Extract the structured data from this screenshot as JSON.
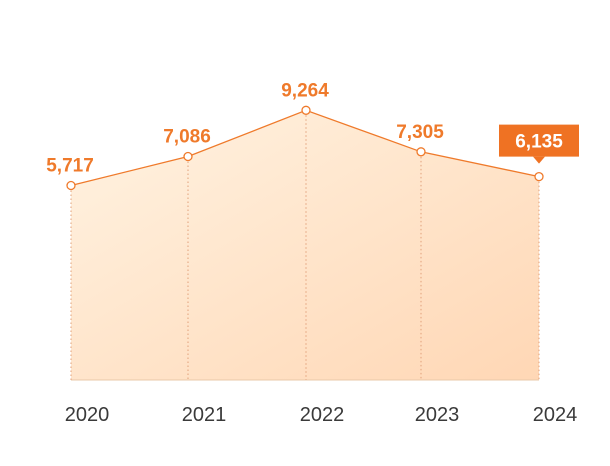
{
  "chart_data": {
    "type": "area",
    "title": "",
    "xlabel": "",
    "ylabel": "",
    "categories": [
      "2020",
      "2021",
      "2022",
      "2023",
      "2024"
    ],
    "values": [
      5717,
      7086,
      9264,
      7305,
      6135
    ],
    "value_labels": [
      "5,717",
      "7,086",
      "9,264",
      "7,305",
      "6,135"
    ],
    "highlighted_index": 4,
    "grid": false,
    "legend": "none"
  },
  "colors": {
    "accent": "#ef7a2b",
    "highlight_box": "#ef7223",
    "highlight_text": "#ffffff",
    "area_start": "#fff3e2",
    "area_end": "#ffd7b5",
    "axis_text": "#3a3a3a",
    "guide_line": "#e2a07a",
    "baseline": "#e8c8a8",
    "marker_fill": "#ffffff"
  }
}
